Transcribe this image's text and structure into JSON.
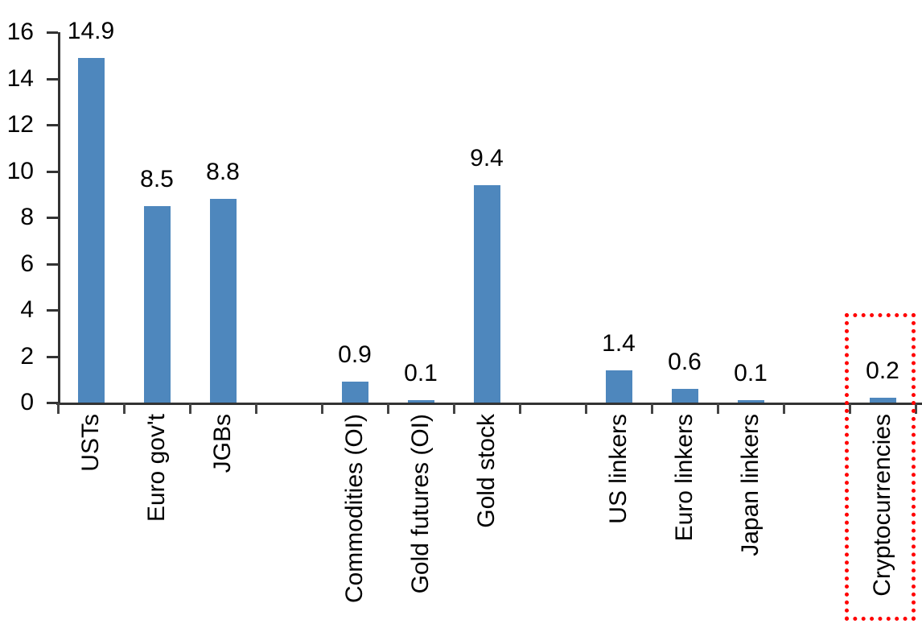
{
  "chart_data": {
    "type": "bar",
    "title": "",
    "xlabel": "",
    "ylabel": "",
    "categories": [
      "USTs",
      "Euro gov't",
      "JGBs",
      "Commodities (OI)",
      "Gold futures (OI)",
      "Gold stock",
      "US linkers",
      "Euro linkers",
      "Japan linkers",
      "Cryptocurrencies"
    ],
    "values": [
      14.9,
      8.5,
      8.8,
      0.9,
      0.1,
      9.4,
      1.4,
      0.6,
      0.1,
      0.2
    ],
    "value_labels": [
      "14.9",
      "8.5",
      "8.8",
      "0.9",
      "0.1",
      "9.4",
      "1.4",
      "0.6",
      "0.1",
      "0.2"
    ],
    "slot_indices": [
      0,
      1,
      2,
      4,
      5,
      6,
      8,
      9,
      10,
      12
    ],
    "total_slots": 13,
    "ylim": [
      0,
      16
    ],
    "yticks": [
      0,
      2,
      4,
      6,
      8,
      10,
      12,
      14,
      16
    ],
    "ytick_labels": [
      "0",
      "2",
      "4",
      "6",
      "8",
      "10",
      "12",
      "14",
      "16"
    ],
    "grid": false,
    "legend": false,
    "category_label_rotation": "rotate-up-90",
    "bar_color": "#4E87BD",
    "axis_color": "#333333",
    "text_color": "#000000",
    "highlighted_category": "Cryptocurrencies",
    "highlight_box_color": "#FF0000",
    "highlight_box_style": "dotted"
  }
}
